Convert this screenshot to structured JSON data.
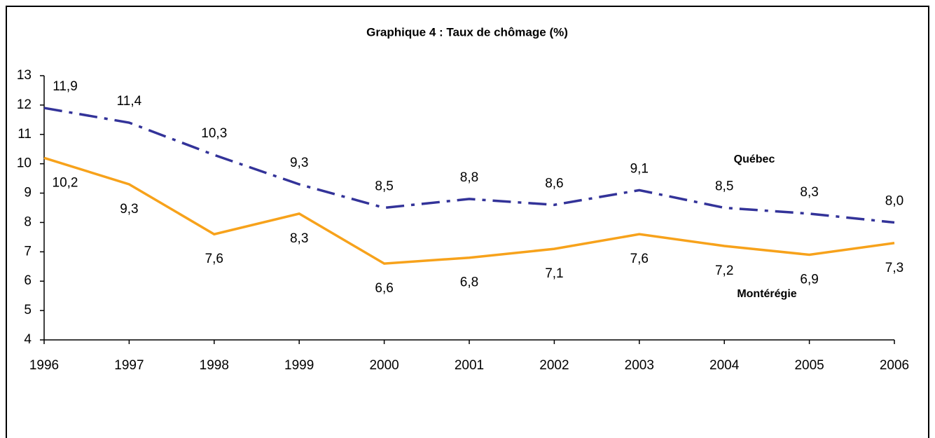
{
  "chart_data": {
    "type": "line",
    "title": "Graphique 4 : Taux de chômage (%)",
    "categories": [
      "1996",
      "1997",
      "1998",
      "1999",
      "2000",
      "2001",
      "2002",
      "2003",
      "2004",
      "2005",
      "2006"
    ],
    "ylim": [
      4,
      13
    ],
    "yticks": [
      4,
      5,
      6,
      7,
      8,
      9,
      10,
      11,
      12,
      13
    ],
    "grid": false,
    "series": [
      {
        "name": "Québec",
        "color": "#333399",
        "linestyle": "dashdot",
        "label_position": "above",
        "values": [
          11.9,
          11.4,
          10.3,
          9.3,
          8.5,
          8.8,
          8.6,
          9.1,
          8.5,
          8.3,
          8.0
        ],
        "value_labels": [
          "11,9",
          "11,4",
          "10,3",
          "9,3",
          "8,5",
          "8,8",
          "8,6",
          "9,1",
          "8,5",
          "8,3",
          "8,0"
        ]
      },
      {
        "name": "Montérégie",
        "color": "#f7a21b",
        "linestyle": "solid",
        "label_position": "below",
        "values": [
          10.2,
          9.3,
          7.6,
          8.3,
          6.6,
          6.8,
          7.1,
          7.6,
          7.2,
          6.9,
          7.3
        ],
        "value_labels": [
          "10,2",
          "9,3",
          "7,6",
          "8,3",
          "6,6",
          "6,8",
          "7,1",
          "7,6",
          "7,2",
          "6,9",
          "7,3"
        ]
      }
    ]
  }
}
